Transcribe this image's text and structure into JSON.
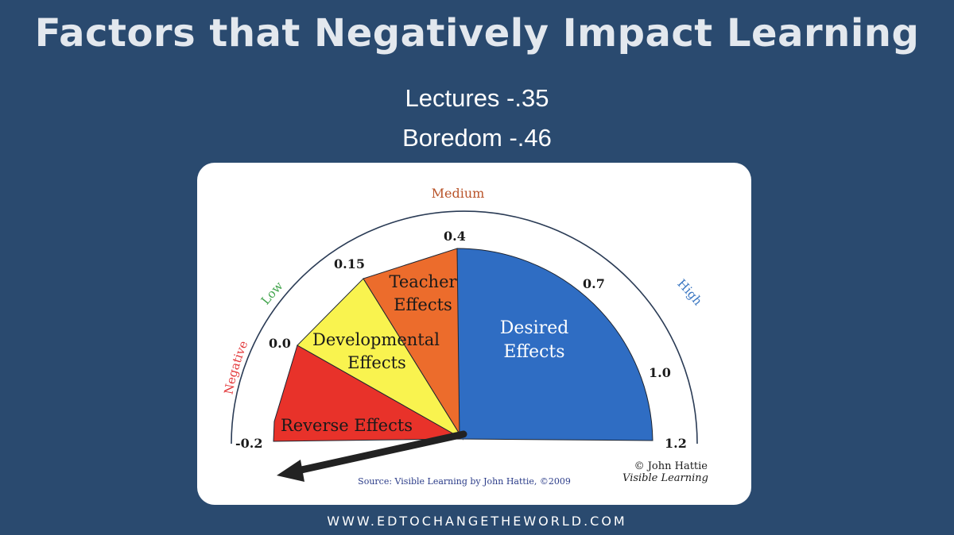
{
  "header": {
    "title": "Factors that Negatively Impact Learning",
    "items": [
      "Lectures -.35",
      "Boredom -.46"
    ]
  },
  "gauge": {
    "zone_labels": {
      "negative": "Negative",
      "low": "Low",
      "medium": "Medium",
      "high": "High"
    },
    "ticks": [
      "-0.2",
      "0.0",
      "0.15",
      "0.4",
      "0.7",
      "1.0",
      "1.2"
    ],
    "segments": [
      {
        "label_line1": "Reverse Effects",
        "label_line2": "",
        "color": "#e8322a"
      },
      {
        "label_line1": "Developmental",
        "label_line2": "Effects",
        "color": "#f9f34f"
      },
      {
        "label_line1": "Teacher",
        "label_line2": "Effects",
        "color": "#ec6c2c"
      },
      {
        "label_line1": "Desired",
        "label_line2": "Effects",
        "color": "#2f6dc3"
      }
    ],
    "zone_colors": {
      "negative": "#e3393b",
      "low": "#3fa34a",
      "medium": "#b9542a",
      "high": "#3b77c2"
    },
    "source": "Source: Visible Learning  by John Hattie, ©2009",
    "copyright_line1": "© John Hattie",
    "copyright_line2": "Visible Learning"
  },
  "footer": {
    "url": "WWW.EDTOCHANGETHEWORLD.COM"
  }
}
